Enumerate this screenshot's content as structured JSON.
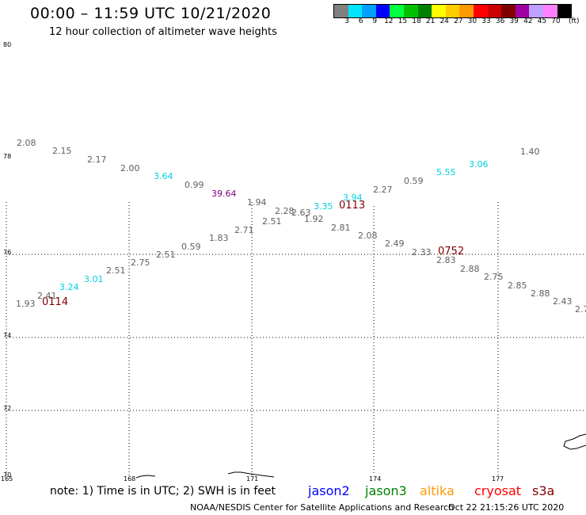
{
  "header": {
    "title": "00:00 – 11:59 UTC 10/21/2020",
    "subtitle": "12 hour collection of altimeter wave heights"
  },
  "color_scale": {
    "colors": [
      "#808080",
      "#00e5ff",
      "#00a0ff",
      "#0000ff",
      "#00ff40",
      "#00c000",
      "#008000",
      "#ffff00",
      "#ffcc00",
      "#ff9900",
      "#ff0000",
      "#cc0000",
      "#800000",
      "#a000a0",
      "#c0a0ff",
      "#ff80ff",
      "#000000"
    ],
    "labels": [
      "3",
      "6",
      "9",
      "12",
      "15",
      "18",
      "21",
      "24",
      "27",
      "30",
      "33",
      "36",
      "39",
      "42",
      "45",
      "70"
    ],
    "unit": "(ft)"
  },
  "grid": {
    "lat_labels": [
      "80",
      "78",
      "76",
      "74",
      "72",
      "70"
    ],
    "lon_labels": [
      "165",
      "168",
      "171",
      "174",
      "177"
    ]
  },
  "wave_heights": [
    {
      "v": "2.08",
      "c": "#606060"
    },
    {
      "v": "2.15",
      "c": "#606060"
    },
    {
      "v": "2.17",
      "c": "#606060"
    },
    {
      "v": "2.00",
      "c": "#606060"
    },
    {
      "v": "3.64",
      "c": "#00d0e0"
    },
    {
      "v": "0.99",
      "c": "#606060"
    },
    {
      "v": "39.64",
      "c": "#800080"
    },
    {
      "v": "1.94",
      "c": "#606060"
    },
    {
      "v": "2.28",
      "c": "#606060"
    },
    {
      "v": "2.63",
      "c": "#606060"
    },
    {
      "v": "3.35",
      "c": "#00d0e0"
    },
    {
      "v": "3.94",
      "c": "#00d0e0"
    },
    {
      "v": "2.27",
      "c": "#606060"
    },
    {
      "v": "0.59",
      "c": "#606060"
    },
    {
      "v": "5.55",
      "c": "#00d0e0"
    },
    {
      "v": "3.06",
      "c": "#00d0e0"
    },
    {
      "v": "1.40",
      "c": "#606060"
    },
    {
      "v": "2.51",
      "c": "#606060"
    },
    {
      "v": "1.92",
      "c": "#606060"
    },
    {
      "v": "2.81",
      "c": "#606060"
    },
    {
      "v": "2.08",
      "c": "#606060"
    },
    {
      "v": "2.49",
      "c": "#606060"
    },
    {
      "v": "2.33",
      "c": "#606060"
    },
    {
      "v": "2.83",
      "c": "#606060"
    },
    {
      "v": "2.88",
      "c": "#606060"
    },
    {
      "v": "2.75",
      "c": "#606060"
    },
    {
      "v": "2.85",
      "c": "#606060"
    },
    {
      "v": "2.88",
      "c": "#606060"
    },
    {
      "v": "2.43",
      "c": "#606060"
    },
    {
      "v": "2.7",
      "c": "#606060"
    },
    {
      "v": "2.71",
      "c": "#606060"
    },
    {
      "v": "1.83",
      "c": "#606060"
    },
    {
      "v": "0.59",
      "c": "#606060"
    },
    {
      "v": "2.51",
      "c": "#606060"
    },
    {
      "v": "2.75",
      "c": "#606060"
    },
    {
      "v": "2.51",
      "c": "#606060"
    },
    {
      "v": "3.01",
      "c": "#00d0e0"
    },
    {
      "v": "3.24",
      "c": "#00d0e0"
    },
    {
      "v": "2.41",
      "c": "#606060"
    },
    {
      "v": "1.93",
      "c": "#606060"
    }
  ],
  "time_labels": [
    "0113",
    "0752",
    "0114"
  ],
  "footer": {
    "note": "note: 1) Time is in UTC; 2) SWH is in feet",
    "satellites": [
      {
        "name": "jason2",
        "color": "#0000ff"
      },
      {
        "name": "jason3",
        "color": "#008000"
      },
      {
        "name": "altika",
        "color": "#ff9900"
      },
      {
        "name": "cryosat",
        "color": "#ff0000"
      },
      {
        "name": "s3a",
        "color": "#800000"
      }
    ],
    "credit": "NOAA/NESDIS Center for Satellite Applications and Research",
    "timestamp": "Oct 22 21:15:26 UTC 2020"
  }
}
